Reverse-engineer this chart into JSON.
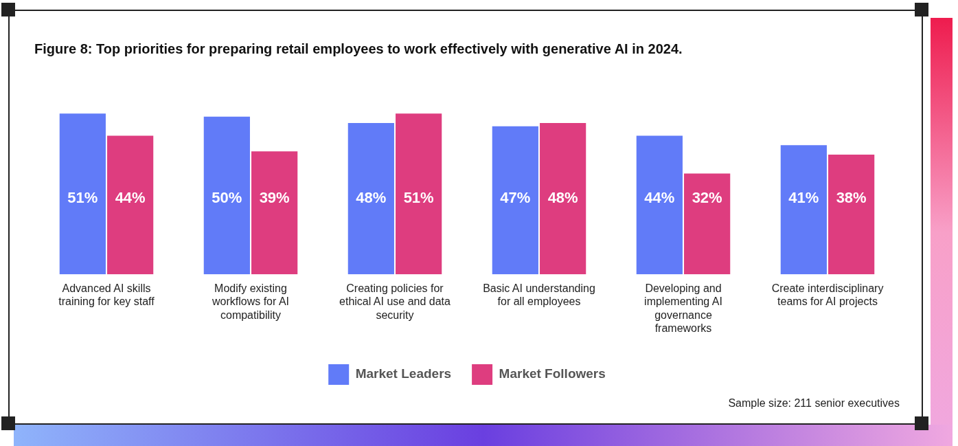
{
  "chart_data": {
    "type": "bar",
    "title": "Figure 8: Top priorities for preparing retail employees to work effectively with generative AI in 2024.",
    "categories": [
      "Advanced AI skills training for key staff",
      "Modify existing workflows for AI compatibility",
      "Creating policies for ethical AI use and data security",
      "Basic AI understanding for all employees",
      "Developing and implementing AI governance frameworks",
      "Create interdisciplinary teams for AI projects"
    ],
    "series": [
      {
        "name": "Market Leaders",
        "color": "#617bf8",
        "values": [
          51,
          50,
          48,
          47,
          44,
          41
        ],
        "value_labels": [
          "51%",
          "50%",
          "48%",
          "47%",
          "44%",
          "41%"
        ]
      },
      {
        "name": "Market Followers",
        "color": "#de3d7f",
        "values": [
          44,
          39,
          51,
          48,
          32,
          38
        ],
        "value_labels": [
          "44%",
          "39%",
          "51%",
          "48%",
          "32%",
          "38%"
        ]
      }
    ],
    "legend": "bottom",
    "annotations": [
      "Sample size: 211 senior executives"
    ]
  }
}
